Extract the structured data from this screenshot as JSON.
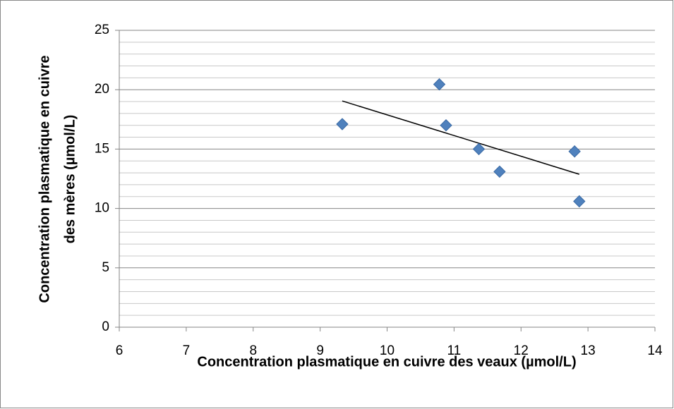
{
  "chart_data": {
    "type": "scatter",
    "xlabel": "Concentration plasmatique en cuivre des veaux (µmol/L)",
    "ylabel": [
      "Concentration plasmatique en cuivre",
      "des mères (µmol/L)"
    ],
    "series": [
      {
        "color": "#4f81bd",
        "x": [
          9.33,
          10.78,
          10.88,
          11.37,
          11.68,
          12.8,
          12.87
        ],
        "values": [
          17.1,
          20.45,
          17.0,
          15.0,
          13.1,
          14.8,
          10.6
        ]
      }
    ],
    "trendline": {
      "color": "#000000",
      "x": [
        9.33,
        12.87
      ],
      "values": [
        19.05,
        12.88
      ]
    },
    "xlim": [
      6,
      14
    ],
    "xticks": [
      6,
      7,
      8,
      9,
      10,
      11,
      12,
      13,
      14
    ],
    "ylim": [
      0,
      25
    ],
    "yticks": [
      0,
      5,
      10,
      15,
      20,
      25
    ],
    "y_minor_ticks": [
      1,
      2,
      3,
      4,
      6,
      7,
      8,
      9,
      11,
      12,
      13,
      14,
      16,
      17,
      18,
      19,
      21,
      22,
      23,
      24
    ],
    "grid": true
  }
}
